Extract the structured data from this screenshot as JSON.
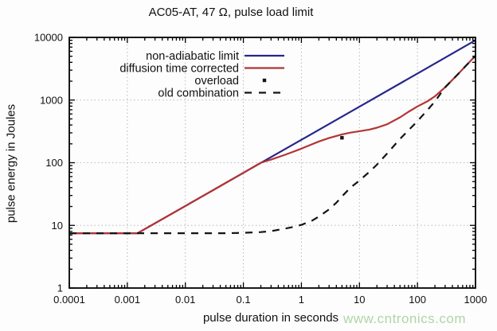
{
  "watermark": "www.cntronics.com",
  "chart_data": {
    "type": "line",
    "title": "AC05-AT, 47 Ω, pulse load limit",
    "xlabel": "pulse duration in seconds",
    "ylabel": "pulse energy in Joules",
    "xscale": "log",
    "yscale": "log",
    "xlim": [
      0.0001,
      1000
    ],
    "ylim": [
      1,
      10000
    ],
    "xticks": [
      0.0001,
      0.001,
      0.01,
      0.1,
      1,
      10,
      100,
      1000
    ],
    "xtick_labels": [
      "0.0001",
      "0.001",
      "0.01",
      "0.1",
      "1",
      "10",
      "100",
      "1000"
    ],
    "yticks": [
      1,
      10,
      100,
      1000,
      10000
    ],
    "ytick_labels": [
      "1",
      "10",
      "100",
      "1000",
      "10000"
    ],
    "grid": true,
    "grid_style": "dotted",
    "legend_position": "top-left",
    "colors": {
      "non_adiabatic": "#26268c",
      "diffusion": "#b43434",
      "black": "#141414",
      "grid": "#b8b8b8",
      "axis": "#000000",
      "watermark": "#afd6a5"
    },
    "series": [
      {
        "name": "non-adiabatic limit",
        "style": "solid",
        "color": "#26268c",
        "points": [
          [
            0.0001,
            7.5
          ],
          [
            0.0015,
            7.5
          ],
          [
            0.01,
            20.4
          ],
          [
            0.1,
            69
          ],
          [
            1,
            232
          ],
          [
            10,
            784
          ],
          [
            100,
            2650
          ],
          [
            1000,
            9000
          ]
        ]
      },
      {
        "name": "diffusion time corrected",
        "style": "solid",
        "color": "#b43434",
        "points": [
          [
            0.0001,
            7.5
          ],
          [
            0.0015,
            7.5
          ],
          [
            0.01,
            20.4
          ],
          [
            0.03,
            36.5
          ],
          [
            0.1,
            69
          ],
          [
            0.2,
            100
          ],
          [
            0.3,
            112
          ],
          [
            0.5,
            132
          ],
          [
            0.7,
            148
          ],
          [
            1,
            168
          ],
          [
            1.5,
            196
          ],
          [
            2,
            218
          ],
          [
            3,
            248
          ],
          [
            5,
            283
          ],
          [
            7,
            302
          ],
          [
            10,
            318
          ],
          [
            15,
            338
          ],
          [
            20,
            362
          ],
          [
            30,
            410
          ],
          [
            50,
            530
          ],
          [
            70,
            650
          ],
          [
            100,
            790
          ],
          [
            150,
            960
          ],
          [
            200,
            1150
          ],
          [
            300,
            1600
          ],
          [
            500,
            2600
          ],
          [
            700,
            3600
          ],
          [
            1000,
            5100
          ]
        ]
      },
      {
        "name": "overload",
        "style": "points",
        "marker": "square",
        "color": "#141414",
        "points": [
          [
            5,
            250
          ]
        ]
      },
      {
        "name": "old combination",
        "style": "dashed",
        "color": "#141414",
        "points": [
          [
            0.0001,
            7.5
          ],
          [
            0.05,
            7.5
          ],
          [
            0.1,
            7.6
          ],
          [
            0.2,
            7.8
          ],
          [
            0.3,
            8.1
          ],
          [
            0.5,
            8.8
          ],
          [
            0.7,
            9.4
          ],
          [
            1,
            10.2
          ],
          [
            1.5,
            11.8
          ],
          [
            2,
            13.8
          ],
          [
            3,
            18
          ],
          [
            4,
            23
          ],
          [
            5,
            29
          ],
          [
            7,
            40
          ],
          [
            10,
            52
          ],
          [
            15,
            72
          ],
          [
            20,
            93
          ],
          [
            30,
            140
          ],
          [
            50,
            240
          ],
          [
            70,
            330
          ],
          [
            100,
            460
          ],
          [
            150,
            700
          ],
          [
            200,
            950
          ],
          [
            300,
            1600
          ],
          [
            500,
            2600
          ],
          [
            700,
            3600
          ],
          [
            1000,
            5100
          ]
        ]
      }
    ]
  }
}
